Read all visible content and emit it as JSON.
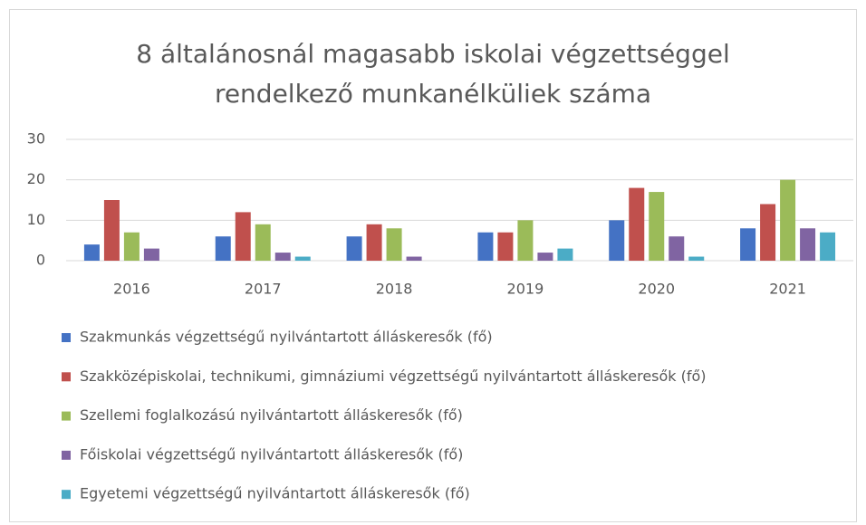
{
  "chart_data": {
    "type": "bar",
    "title": "8 általánosnál magasabb iskolai végzettséggel rendelkező munkanélküliek száma",
    "categories": [
      "2016",
      "2017",
      "2018",
      "2019",
      "2020",
      "2021"
    ],
    "series": [
      {
        "name": "Szakmunkás végzettségű nyilvántartott álláskeresők (fő)",
        "color": "#4472c4",
        "values": [
          4,
          6,
          6,
          7,
          10,
          8
        ]
      },
      {
        "name": "Szakközépiskolai, technikumi, gimnáziumi végzettségű nyilvántartott álláskeresők (fő)",
        "color": "#c0504d",
        "values": [
          15,
          12,
          9,
          7,
          18,
          14
        ]
      },
      {
        "name": "Szellemi foglalkozású nyilvántartott álláskeresők (fő)",
        "color": "#9bbb59",
        "values": [
          7,
          9,
          8,
          10,
          17,
          20
        ]
      },
      {
        "name": "Főiskolai végzettségű nyilvántartott álláskeresők (fő)",
        "color": "#8064a2",
        "values": [
          3,
          2,
          1,
          2,
          6,
          8
        ]
      },
      {
        "name": "Egyetemi végzettségű nyilvántartott álláskeresők (fő)",
        "color": "#4bacc6",
        "values": [
          0,
          1,
          0,
          3,
          1,
          7
        ]
      }
    ],
    "ylim": [
      0,
      30
    ],
    "yticks": [
      0,
      10,
      20,
      30
    ],
    "grid": true,
    "legend": "bottom"
  }
}
